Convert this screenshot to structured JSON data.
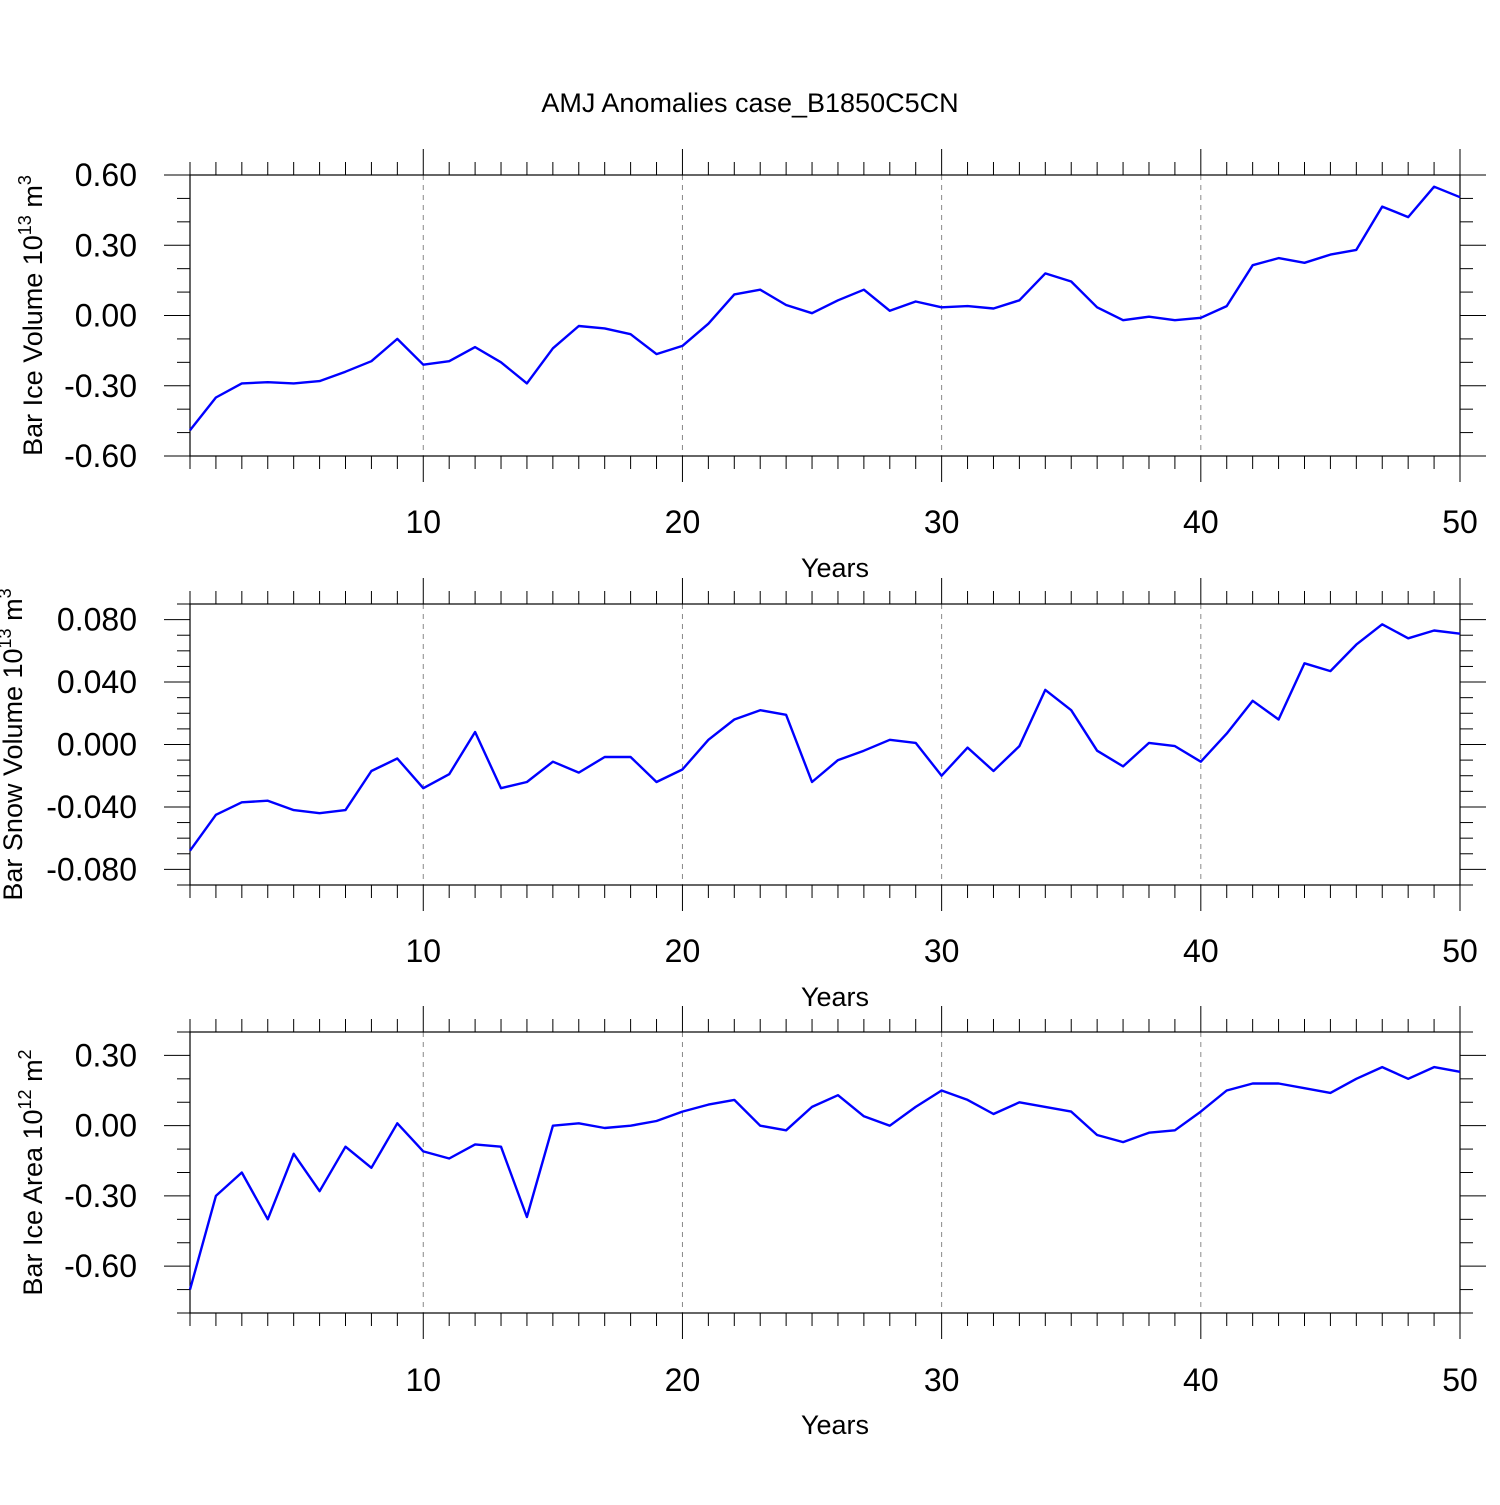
{
  "title": "AMJ Anomalies case_B1850C5CN",
  "colors": {
    "series": "#0000ff",
    "axes": "#000000",
    "grid": "#888888"
  },
  "chart_data": [
    {
      "type": "line",
      "ylabel_main": "Bar Ice Volume 10",
      "ylabel_exp": "13",
      "ylabel_unit": " m",
      "ylabel_unit_exp": "3",
      "xlabel": "Years",
      "xlim": [
        1,
        50
      ],
      "ylim": [
        -0.6,
        0.6
      ],
      "yticks": [
        "-0.60",
        "-0.30",
        "0.00",
        "0.30",
        "0.60"
      ],
      "ytick_values": [
        -0.6,
        -0.3,
        0.0,
        0.3,
        0.6
      ],
      "yminor_step": 0.1,
      "xticks": [
        "10",
        "20",
        "30",
        "40",
        "50"
      ],
      "xtick_values": [
        10,
        20,
        30,
        40,
        50
      ],
      "grid": "dashed vertical at major x ticks",
      "x": [
        1,
        2,
        3,
        4,
        5,
        6,
        7,
        8,
        9,
        10,
        11,
        12,
        13,
        14,
        15,
        16,
        17,
        18,
        19,
        20,
        21,
        22,
        23,
        24,
        25,
        26,
        27,
        28,
        29,
        30,
        31,
        32,
        33,
        34,
        35,
        36,
        37,
        38,
        39,
        40,
        41,
        42,
        43,
        44,
        45,
        46,
        47,
        48,
        49,
        50
      ],
      "series": [
        {
          "values": [
            -0.49,
            -0.35,
            -0.29,
            -0.285,
            -0.29,
            -0.28,
            -0.24,
            -0.195,
            -0.1,
            -0.21,
            -0.195,
            -0.135,
            -0.2,
            -0.29,
            -0.14,
            -0.045,
            -0.055,
            -0.08,
            -0.165,
            -0.13,
            -0.035,
            0.09,
            0.11,
            0.045,
            0.01,
            0.065,
            0.11,
            0.02,
            0.06,
            0.035,
            0.04,
            0.03,
            0.065,
            0.18,
            0.145,
            0.035,
            -0.02,
            -0.005,
            -0.02,
            -0.01,
            0.04,
            0.215,
            0.245,
            0.225,
            0.26,
            0.28,
            0.465,
            0.42,
            0.55,
            0.505
          ]
        }
      ]
    },
    {
      "type": "line",
      "ylabel_main": "Bar Snow Volume 10",
      "ylabel_exp": "13",
      "ylabel_unit": " m",
      "ylabel_unit_exp": "3",
      "xlabel": "Years",
      "xlim": [
        1,
        50
      ],
      "ylim": [
        -0.09,
        0.09
      ],
      "yticks": [
        "-0.080",
        "-0.040",
        "0.000",
        "0.040",
        "0.080"
      ],
      "ytick_values": [
        -0.08,
        -0.04,
        0.0,
        0.04,
        0.08
      ],
      "yminor_step": 0.01,
      "xticks": [
        "10",
        "20",
        "30",
        "40",
        "50"
      ],
      "xtick_values": [
        10,
        20,
        30,
        40,
        50
      ],
      "grid": "dashed vertical at major x ticks",
      "x": [
        1,
        2,
        3,
        4,
        5,
        6,
        7,
        8,
        9,
        10,
        11,
        12,
        13,
        14,
        15,
        16,
        17,
        18,
        19,
        20,
        21,
        22,
        23,
        24,
        25,
        26,
        27,
        28,
        29,
        30,
        31,
        32,
        33,
        34,
        35,
        36,
        37,
        38,
        39,
        40,
        41,
        42,
        43,
        44,
        45,
        46,
        47,
        48,
        49,
        50
      ],
      "series": [
        {
          "values": [
            -0.068,
            -0.045,
            -0.037,
            -0.036,
            -0.042,
            -0.044,
            -0.042,
            -0.017,
            -0.009,
            -0.028,
            -0.019,
            0.008,
            -0.028,
            -0.024,
            -0.011,
            -0.018,
            -0.008,
            -0.008,
            -0.024,
            -0.016,
            0.003,
            0.016,
            0.022,
            0.019,
            -0.024,
            -0.01,
            -0.004,
            0.003,
            0.001,
            -0.02,
            -0.002,
            -0.017,
            -0.001,
            0.035,
            0.022,
            -0.004,
            -0.014,
            0.001,
            -0.001,
            -0.011,
            0.007,
            0.028,
            0.016,
            0.052,
            0.047,
            0.064,
            0.077,
            0.068,
            0.073,
            0.071
          ]
        }
      ]
    },
    {
      "type": "line",
      "ylabel_main": "Bar Ice Area 10",
      "ylabel_exp": "12",
      "ylabel_unit": " m",
      "ylabel_unit_exp": "2",
      "xlabel": "Years",
      "xlim": [
        1,
        50
      ],
      "ylim": [
        -0.8,
        0.4
      ],
      "yticks": [
        "-0.60",
        "-0.30",
        "0.00",
        "0.30"
      ],
      "ytick_values": [
        -0.6,
        -0.3,
        0.0,
        0.3
      ],
      "yminor_step": 0.1,
      "xticks": [
        "10",
        "20",
        "30",
        "40",
        "50"
      ],
      "xtick_values": [
        10,
        20,
        30,
        40,
        50
      ],
      "grid": "dashed vertical at major x ticks",
      "x": [
        1,
        2,
        3,
        4,
        5,
        6,
        7,
        8,
        9,
        10,
        11,
        12,
        13,
        14,
        15,
        16,
        17,
        18,
        19,
        20,
        21,
        22,
        23,
        24,
        25,
        26,
        27,
        28,
        29,
        30,
        31,
        32,
        33,
        34,
        35,
        36,
        37,
        38,
        39,
        40,
        41,
        42,
        43,
        44,
        45,
        46,
        47,
        48,
        49,
        50
      ],
      "series": [
        {
          "values": [
            -0.7,
            -0.3,
            -0.2,
            -0.4,
            -0.12,
            -0.28,
            -0.09,
            -0.18,
            0.01,
            -0.11,
            -0.14,
            -0.08,
            -0.09,
            -0.39,
            0.0,
            0.01,
            -0.01,
            0.0,
            0.02,
            0.06,
            0.09,
            0.11,
            0.0,
            -0.02,
            0.08,
            0.13,
            0.04,
            0.0,
            0.08,
            0.15,
            0.11,
            0.05,
            0.1,
            0.08,
            0.06,
            -0.04,
            -0.07,
            -0.03,
            -0.02,
            0.06,
            0.15,
            0.18,
            0.18,
            0.16,
            0.14,
            0.2,
            0.25,
            0.2,
            0.25,
            0.23
          ]
        }
      ]
    }
  ]
}
